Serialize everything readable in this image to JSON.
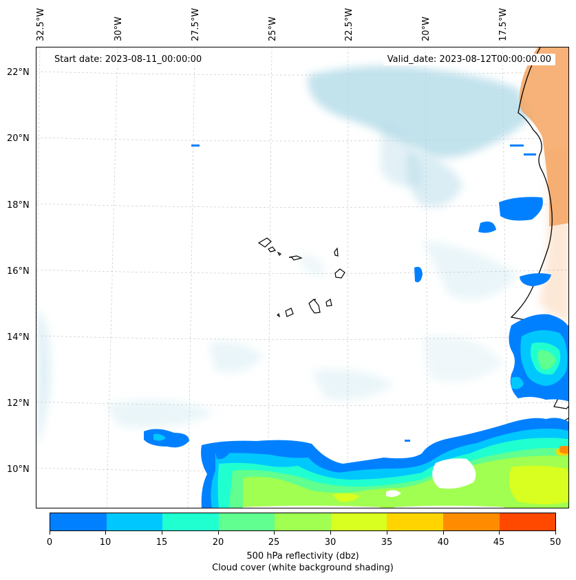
{
  "map": {
    "start_date": "Start date: 2023-08-11_00:00:00",
    "valid_date": "Valid_date: 2023-08-12T00:00:00.00",
    "lon_labels": [
      "32.5°W",
      "30°W",
      "27.5°W",
      "25°W",
      "22.5°W",
      "20°W",
      "17.5°W"
    ],
    "lat_labels": [
      "22°N",
      "20°N",
      "18°N",
      "16°N",
      "14°N",
      "12°N",
      "10°N"
    ],
    "extent": {
      "lon_min": -32.7,
      "lon_max": -15.8,
      "lat_min": 8.8,
      "lat_max": 22.8
    },
    "land_color": "#f4a460",
    "cloud_color": "#add8e6"
  },
  "colorbar": {
    "ticks": [
      "0",
      "10",
      "15",
      "20",
      "25",
      "30",
      "35",
      "40",
      "45",
      "50"
    ],
    "colors": [
      "#0080ff",
      "#00c8ff",
      "#20ffd0",
      "#60ff90",
      "#a0ff50",
      "#d8ff20",
      "#ffd400",
      "#ff8c00",
      "#ff4800"
    ],
    "label": "500 hPa reflectivity (dbz)",
    "sublabel": "Cloud cover (white background shading)"
  }
}
